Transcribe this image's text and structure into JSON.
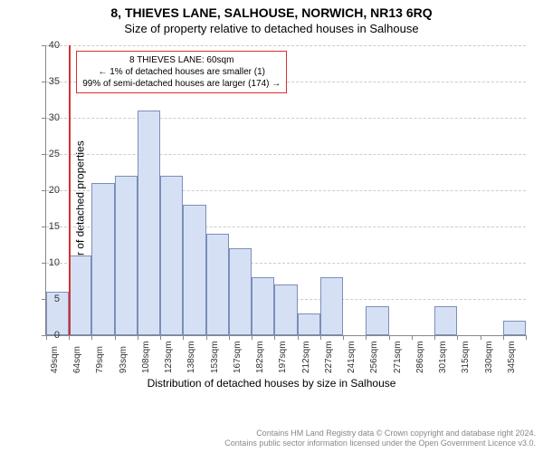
{
  "titles": {
    "main": "8, THIEVES LANE, SALHOUSE, NORWICH, NR13 6RQ",
    "sub": "Size of property relative to detached houses in Salhouse"
  },
  "axes": {
    "ylabel": "Number of detached properties",
    "xlabel": "Distribution of detached houses by size in Salhouse",
    "ylim": [
      0,
      40
    ],
    "ytick_step": 5,
    "grid_color": "#cccccc",
    "axis_color": "#888888"
  },
  "histogram": {
    "type": "histogram",
    "bar_fill": "#d6e0f5",
    "bar_border": "#7a8fb8",
    "bin_labels": [
      "49sqm",
      "64sqm",
      "79sqm",
      "93sqm",
      "108sqm",
      "123sqm",
      "138sqm",
      "153sqm",
      "167sqm",
      "182sqm",
      "197sqm",
      "212sqm",
      "227sqm",
      "241sqm",
      "256sqm",
      "271sqm",
      "286sqm",
      "301sqm",
      "315sqm",
      "330sqm",
      "345sqm"
    ],
    "values": [
      6,
      11,
      21,
      22,
      31,
      22,
      18,
      14,
      12,
      8,
      7,
      3,
      8,
      0,
      4,
      0,
      0,
      4,
      0,
      0,
      2
    ]
  },
  "marker": {
    "color": "#d93030",
    "bin_index": 1,
    "position_in_bin": 0.0
  },
  "annotation": {
    "border_color": "#d93030",
    "line1": "8 THIEVES LANE: 60sqm",
    "line2": "← 1% of detached houses are smaller (1)",
    "line3": "99% of semi-detached houses are larger (174) →"
  },
  "footer": {
    "line1": "Contains HM Land Registry data © Crown copyright and database right 2024.",
    "line2": "Contains public sector information licensed under the Open Government Licence v3.0."
  },
  "colors": {
    "background": "#ffffff",
    "text": "#333333",
    "footer_text": "#888888"
  }
}
